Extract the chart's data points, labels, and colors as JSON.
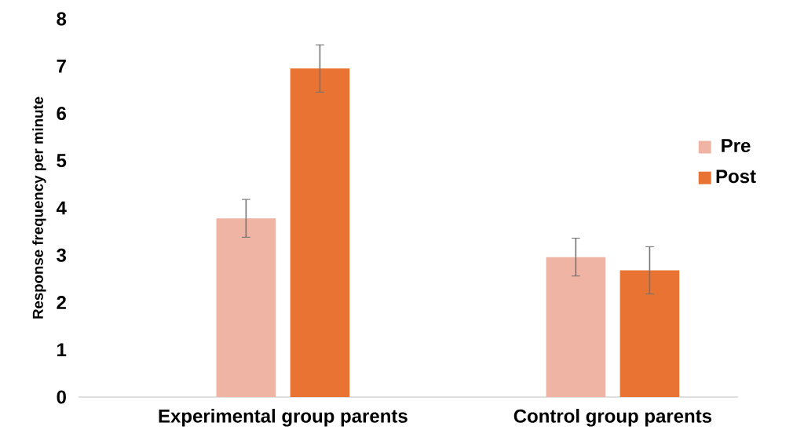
{
  "chart_data": {
    "type": "bar",
    "ylabel": "Response frequency per minute",
    "categories": [
      "Experimental group parents",
      "Control group parents"
    ],
    "series": [
      {
        "name": "Pre",
        "color": "#f0b4a4",
        "values": [
          3.78,
          2.96
        ],
        "errors": [
          0.4,
          0.4
        ]
      },
      {
        "name": "Post",
        "color": "#e87333",
        "values": [
          6.95,
          2.68
        ],
        "errors": [
          0.5,
          0.5
        ]
      }
    ],
    "ylim": [
      0,
      8
    ],
    "yticks": [
      0,
      1,
      2,
      3,
      4,
      5,
      6,
      7,
      8
    ],
    "grid": false,
    "legend": "right"
  }
}
